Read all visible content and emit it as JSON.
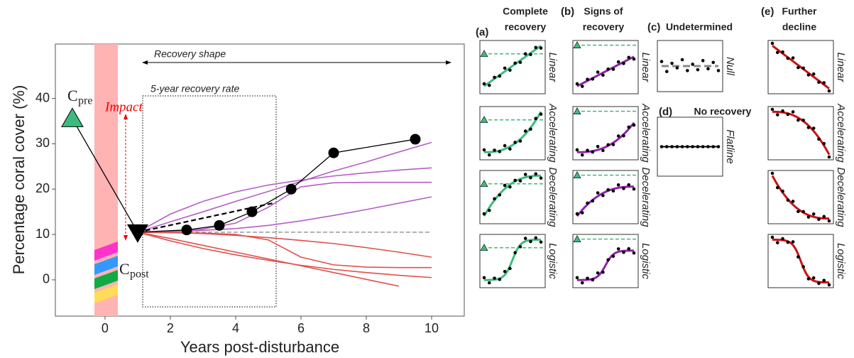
{
  "chart_data": {
    "type": "line",
    "x_label": "Years post-disturbance",
    "y_label": "Percentage coral cover (%)",
    "xlim": [
      -1.52,
      11
    ],
    "ylim": [
      -8,
      52
    ],
    "xticks": [
      0,
      2,
      4,
      6,
      8,
      10
    ],
    "yticks": [
      0,
      10,
      20,
      30,
      40
    ],
    "annotations": {
      "recovery_shape": "Recovery shape",
      "recovery_rate": "5-year recovery rate",
      "impact": "Impact",
      "pre_symbol": "C",
      "pre_sub": "pre",
      "post_symbol": "C",
      "post_sub": "post"
    },
    "pre": {
      "x": -1,
      "value": 35.5,
      "color": "#3dbb7e"
    },
    "post": {
      "x": 1,
      "value": 10.5,
      "color": "#000000"
    },
    "observed": {
      "x": [
        1,
        2.5,
        3.5,
        4.5,
        5.7,
        7,
        9.5
      ],
      "values": [
        10.5,
        11,
        12,
        15,
        20,
        28,
        31
      ],
      "color": "#000000"
    },
    "projection": {
      "x": [
        1,
        5.2
      ],
      "values": [
        10.5,
        17
      ],
      "color": "#000000"
    },
    "x": [
      1,
      2,
      3,
      4,
      5,
      6,
      7,
      8,
      9,
      10
    ],
    "series": [
      {
        "color": "#b55fc4",
        "values": [
          10.5,
          12.8,
          15,
          17.3,
          19.5,
          21.7,
          24,
          26,
          28.2,
          30.3
        ]
      },
      {
        "color": "#b55fc4",
        "values": [
          10.5,
          14.5,
          17.3,
          19.4,
          20.9,
          22,
          22.9,
          23.6,
          24.2,
          24.7
        ]
      },
      {
        "color": "#b55fc4",
        "values": [
          10.5,
          10.7,
          11.2,
          12.5,
          16,
          20.5,
          21.4,
          21.5,
          21.5,
          21.5
        ]
      },
      {
        "color": "#b55fc4",
        "values": [
          10.5,
          10.6,
          10.9,
          11.3,
          12,
          13,
          14.2,
          15.5,
          16.9,
          18.3
        ]
      },
      {
        "color": "#999999",
        "values": [
          10.5,
          10.5,
          10.5,
          10.5,
          10.5,
          10.5,
          10.5,
          10.5,
          10.5,
          10.5
        ]
      },
      {
        "color": "#e0504a",
        "values": [
          10.5,
          9.1,
          7.6,
          6.1,
          4.6,
          3.1,
          1.6,
          0.1,
          -1.4,
          null
        ]
      },
      {
        "color": "#e0504a",
        "values": [
          10.5,
          8.6,
          6.9,
          5.5,
          4.3,
          3.2,
          2.3,
          1.6,
          1,
          0.5
        ]
      },
      {
        "color": "#e0504a",
        "values": [
          10.5,
          10.4,
          10.3,
          10,
          8.8,
          5,
          3.3,
          2.8,
          2.7,
          2.7
        ]
      },
      {
        "color": "#e0504a",
        "values": [
          10.5,
          10.4,
          10.2,
          9.8,
          9.3,
          8.7,
          8,
          7.1,
          6.1,
          5
        ]
      }
    ]
  },
  "panels": [
    {
      "label": "(a)",
      "title_lines": [
        "Complete",
        "recovery"
      ],
      "color": "#3dbb7e",
      "rows": [
        "Linear",
        "Accelerating",
        "Decelerating",
        "Logistic"
      ]
    },
    {
      "label": "(b)",
      "title_lines": [
        "Signs of",
        "recovery"
      ],
      "color": "#8e24aa",
      "rows": [
        "Linear",
        "Accelerating",
        "Decelerating",
        "Logistic"
      ]
    },
    {
      "label": "(c)",
      "title_lines": [
        "Undetermined"
      ],
      "color": "#888888",
      "rows": [
        "Null"
      ]
    },
    {
      "label": "(d)",
      "title_lines": [
        "No recovery"
      ],
      "color": "#000000",
      "rows": [
        "Flatline"
      ]
    },
    {
      "label": "(e)",
      "title_lines": [
        "Further",
        "decline"
      ],
      "color": "#cc1111",
      "rows": [
        "Linear",
        "Accelerating",
        "Decelerating",
        "Logistic"
      ]
    }
  ]
}
